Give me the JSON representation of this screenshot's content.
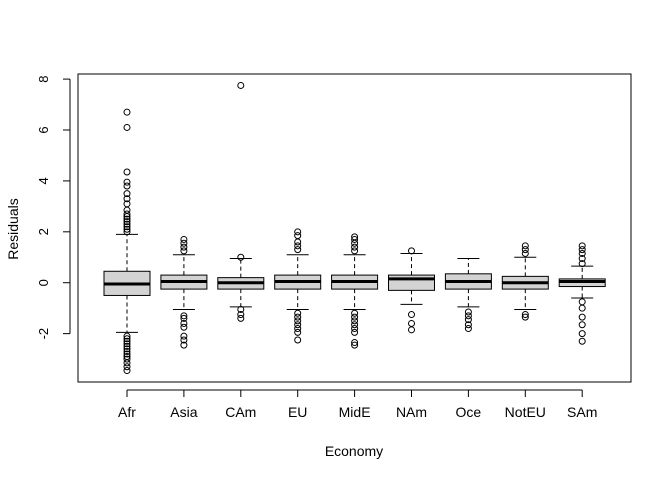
{
  "chart_data": {
    "type": "boxplot",
    "title": "",
    "xlabel": "Economy",
    "ylabel": "Residuals",
    "ylim": [
      -3.9,
      8.2
    ],
    "yticks": [
      -2,
      0,
      2,
      4,
      6,
      8
    ],
    "grid": false,
    "legend": "none",
    "box_fill": "#d3d3d3",
    "categories": [
      "Afr",
      "Asia",
      "CAm",
      "EU",
      "MidE",
      "NAm",
      "Oce",
      "NotEU",
      "SAm"
    ],
    "boxes": [
      {
        "category": "Afr",
        "whisker_low": -1.95,
        "q1": -0.5,
        "median": -0.05,
        "q3": 0.45,
        "whisker_high": 1.9,
        "outliers": [
          -3.45,
          -3.3,
          -3.15,
          -3.0,
          -2.9,
          -2.8,
          -2.7,
          -2.6,
          -2.5,
          -2.4,
          -2.3,
          -2.2,
          -2.1,
          2.0,
          2.1,
          2.2,
          2.3,
          2.4,
          2.5,
          2.6,
          2.7,
          2.85,
          3.1,
          3.3,
          3.5,
          3.8,
          3.95,
          4.35,
          6.1,
          6.7
        ]
      },
      {
        "category": "Asia",
        "whisker_low": -1.05,
        "q1": -0.25,
        "median": 0.05,
        "q3": 0.3,
        "whisker_high": 1.1,
        "outliers": [
          -2.45,
          -2.25,
          -2.1,
          -1.75,
          -1.6,
          -1.4,
          -1.3,
          1.25,
          1.4,
          1.55,
          1.7
        ]
      },
      {
        "category": "CAm",
        "whisker_low": -0.95,
        "q1": -0.25,
        "median": 0.0,
        "q3": 0.2,
        "whisker_high": 0.95,
        "outliers": [
          -1.4,
          -1.25,
          -1.05,
          1.0,
          7.75
        ]
      },
      {
        "category": "EU",
        "whisker_low": -1.05,
        "q1": -0.25,
        "median": 0.05,
        "q3": 0.3,
        "whisker_high": 1.1,
        "outliers": [
          -2.25,
          -1.95,
          -1.8,
          -1.65,
          -1.5,
          -1.35,
          -1.2,
          1.3,
          1.45,
          1.6,
          1.85,
          2.0
        ]
      },
      {
        "category": "MidE",
        "whisker_low": -1.05,
        "q1": -0.25,
        "median": 0.05,
        "q3": 0.3,
        "whisker_high": 1.1,
        "outliers": [
          -2.45,
          -2.35,
          -1.95,
          -1.8,
          -1.65,
          -1.5,
          -1.35,
          -1.2,
          1.25,
          1.4,
          1.55,
          1.7,
          1.8
        ]
      },
      {
        "category": "NAm",
        "whisker_low": -0.85,
        "q1": -0.3,
        "median": 0.15,
        "q3": 0.3,
        "whisker_high": 1.15,
        "outliers": [
          -1.85,
          -1.6,
          -1.25,
          1.25
        ]
      },
      {
        "category": "Oce",
        "whisker_low": -0.95,
        "q1": -0.25,
        "median": 0.05,
        "q3": 0.35,
        "whisker_high": 0.95,
        "outliers": [
          -1.8,
          -1.65,
          -1.45,
          -1.3,
          -1.15
        ]
      },
      {
        "category": "NotEU",
        "whisker_low": -1.05,
        "q1": -0.25,
        "median": 0.0,
        "q3": 0.25,
        "whisker_high": 1.0,
        "outliers": [
          -1.35,
          -1.25,
          1.15,
          1.3,
          1.45
        ]
      },
      {
        "category": "SAm",
        "whisker_low": -0.6,
        "q1": -0.15,
        "median": 0.05,
        "q3": 0.15,
        "whisker_high": 0.65,
        "outliers": [
          -2.3,
          -2.0,
          -1.65,
          -1.35,
          -1.0,
          -0.75,
          0.75,
          0.95,
          1.15,
          1.3,
          1.45
        ]
      }
    ]
  }
}
